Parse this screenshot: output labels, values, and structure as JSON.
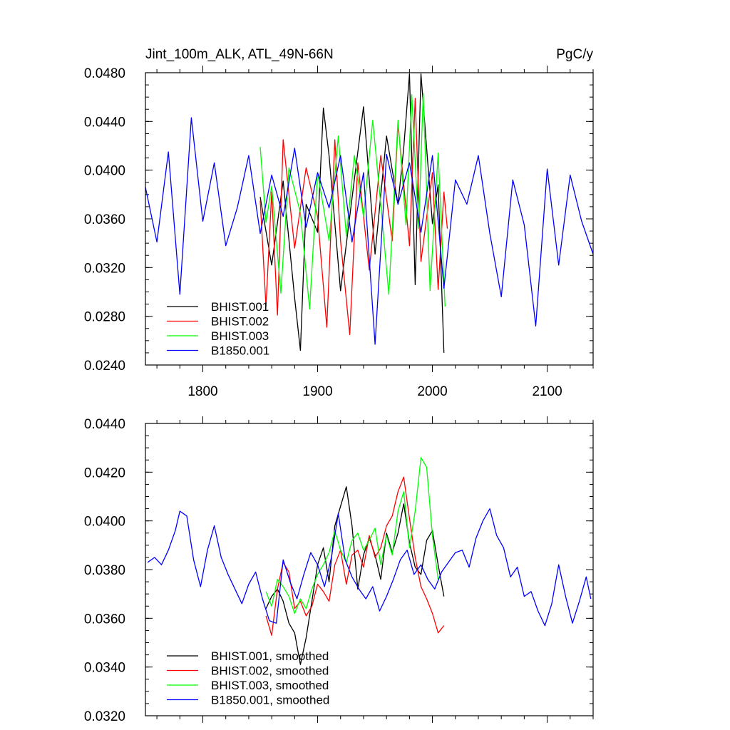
{
  "chart_data": [
    {
      "type": "line",
      "title_left": "Jint_100m_ALK, ATL_49N-66N",
      "title_right": "PgC/y",
      "xlabel": "",
      "ylabel": "",
      "xlim": [
        1750,
        2140
      ],
      "ylim": [
        0.024,
        0.048
      ],
      "xticks": [
        1800,
        1900,
        2000,
        2100
      ],
      "xtick_labels": [
        "1800",
        "1900",
        "2000",
        "2100"
      ],
      "yticks": [
        0.024,
        0.028,
        0.032,
        0.036,
        0.04,
        0.044,
        0.048
      ],
      "ytick_labels": [
        "0.0240",
        "0.0280",
        "0.0320",
        "0.0360",
        "0.0400",
        "0.0440",
        "0.0480"
      ],
      "legend_position": "bottom-left",
      "series": [
        {
          "name": "BHIST.001",
          "color": "#000000",
          "x": [
            1850,
            1860,
            1870,
            1880,
            1885,
            1890,
            1900,
            1905,
            1910,
            1920,
            1930,
            1940,
            1950,
            1960,
            1970,
            1975,
            1980,
            1985,
            1990,
            2000,
            2005,
            2010
          ],
          "values": [
            0.0378,
            0.0322,
            0.0391,
            0.0295,
            0.0252,
            0.0372,
            0.0349,
            0.0451,
            0.0412,
            0.0301,
            0.0377,
            0.0452,
            0.0331,
            0.0428,
            0.0372,
            0.0418,
            0.0479,
            0.0306,
            0.0479,
            0.0356,
            0.0388,
            0.025
          ]
        },
        {
          "name": "BHIST.002",
          "color": "#ff0000",
          "x": [
            1850,
            1855,
            1860,
            1865,
            1870,
            1880,
            1890,
            1900,
            1908,
            1915,
            1920,
            1928,
            1935,
            1945,
            1955,
            1965,
            1970,
            1980,
            1985,
            1990,
            2000,
            2005,
            2010,
            2013
          ],
          "values": [
            0.0375,
            0.0288,
            0.0382,
            0.0281,
            0.0425,
            0.0336,
            0.0402,
            0.0362,
            0.0271,
            0.0425,
            0.0342,
            0.0265,
            0.0406,
            0.0318,
            0.0412,
            0.0342,
            0.0438,
            0.0338,
            0.0459,
            0.0325,
            0.0398,
            0.0302,
            0.0382,
            0.0352
          ]
        },
        {
          "name": "BHIST.003",
          "color": "#00ff00",
          "x": [
            1850,
            1855,
            1860,
            1868,
            1875,
            1885,
            1893,
            1900,
            1910,
            1918,
            1925,
            1932,
            1940,
            1948,
            1955,
            1962,
            1970,
            1977,
            1982,
            1988,
            1992,
            1998,
            2005,
            2011
          ],
          "values": [
            0.0419,
            0.0357,
            0.0387,
            0.0299,
            0.0402,
            0.0365,
            0.0286,
            0.0398,
            0.0342,
            0.0428,
            0.0346,
            0.0412,
            0.0362,
            0.0441,
            0.0372,
            0.0298,
            0.0441,
            0.0355,
            0.0462,
            0.0352,
            0.0463,
            0.0301,
            0.0414,
            0.0288
          ]
        },
        {
          "name": "B1850.001",
          "color": "#0000ff",
          "x": [
            1750,
            1760,
            1770,
            1780,
            1790,
            1800,
            1810,
            1820,
            1830,
            1840,
            1850,
            1860,
            1870,
            1880,
            1890,
            1900,
            1910,
            1920,
            1930,
            1940,
            1950,
            1960,
            1970,
            1980,
            1990,
            2000,
            2010,
            2020,
            2030,
            2040,
            2050,
            2060,
            2070,
            2080,
            2090,
            2100,
            2110,
            2120,
            2130,
            2140
          ],
          "values": [
            0.0386,
            0.0341,
            0.0415,
            0.0298,
            0.0443,
            0.0358,
            0.0406,
            0.0338,
            0.0369,
            0.0412,
            0.0348,
            0.0396,
            0.0362,
            0.0418,
            0.0353,
            0.0398,
            0.0369,
            0.0412,
            0.0341,
            0.0398,
            0.0257,
            0.0413,
            0.0372,
            0.0406,
            0.0349,
            0.0412,
            0.0303,
            0.0392,
            0.0372,
            0.0412,
            0.0348,
            0.0296,
            0.0392,
            0.0355,
            0.0272,
            0.0401,
            0.0322,
            0.0396,
            0.0358,
            0.0331
          ]
        }
      ]
    },
    {
      "type": "line",
      "xlabel": "",
      "ylabel": "",
      "xlim": [
        1750,
        2140
      ],
      "ylim": [
        0.032,
        0.044
      ],
      "xticks": [
        1800,
        1900,
        2000,
        2100
      ],
      "yticks": [
        0.032,
        0.034,
        0.036,
        0.038,
        0.04,
        0.042,
        0.044
      ],
      "ytick_labels": [
        "0.0320",
        "0.0340",
        "0.0360",
        "0.0380",
        "0.0400",
        "0.0420",
        "0.0440"
      ],
      "legend_position": "bottom-left",
      "series": [
        {
          "name": "BHIST.001, smoothed",
          "color": "#000000",
          "x": [
            1855,
            1860,
            1865,
            1870,
            1875,
            1880,
            1885,
            1890,
            1895,
            1900,
            1905,
            1910,
            1915,
            1920,
            1925,
            1930,
            1935,
            1940,
            1945,
            1950,
            1955,
            1960,
            1965,
            1970,
            1975,
            1980,
            1985,
            1990,
            1995,
            2000,
            2005,
            2010
          ],
          "values": [
            0.0364,
            0.0369,
            0.0372,
            0.0367,
            0.0358,
            0.0354,
            0.0341,
            0.0352,
            0.0367,
            0.0382,
            0.0389,
            0.0375,
            0.0398,
            0.0406,
            0.0414,
            0.0398,
            0.0372,
            0.0386,
            0.0393,
            0.0386,
            0.0376,
            0.0395,
            0.0387,
            0.0395,
            0.0407,
            0.0391,
            0.0381,
            0.0378,
            0.0392,
            0.0396,
            0.0382,
            0.0369
          ]
        },
        {
          "name": "BHIST.002, smoothed",
          "color": "#ff0000",
          "x": [
            1855,
            1860,
            1865,
            1870,
            1875,
            1880,
            1885,
            1890,
            1895,
            1900,
            1905,
            1910,
            1915,
            1920,
            1925,
            1930,
            1935,
            1940,
            1945,
            1950,
            1955,
            1960,
            1965,
            1970,
            1975,
            1980,
            1985,
            1990,
            1995,
            2000,
            2005,
            2010
          ],
          "values": [
            0.0361,
            0.0353,
            0.0372,
            0.0383,
            0.0379,
            0.0364,
            0.0367,
            0.0361,
            0.0365,
            0.0374,
            0.0371,
            0.0367,
            0.0382,
            0.0388,
            0.0374,
            0.0386,
            0.0388,
            0.0381,
            0.0394,
            0.0385,
            0.0389,
            0.0398,
            0.0402,
            0.0412,
            0.0418,
            0.0401,
            0.0385,
            0.0373,
            0.0368,
            0.0362,
            0.0354,
            0.0357
          ]
        },
        {
          "name": "BHIST.003, smoothed",
          "color": "#00ff00",
          "x": [
            1855,
            1860,
            1865,
            1870,
            1875,
            1880,
            1885,
            1890,
            1895,
            1900,
            1905,
            1910,
            1915,
            1920,
            1925,
            1930,
            1935,
            1940,
            1945,
            1950,
            1955,
            1960,
            1965,
            1970,
            1975,
            1980,
            1985,
            1990,
            1995,
            2000,
            2005
          ],
          "values": [
            0.0371,
            0.0365,
            0.0376,
            0.0373,
            0.0369,
            0.0362,
            0.0368,
            0.0364,
            0.0372,
            0.0378,
            0.0382,
            0.0387,
            0.0396,
            0.0388,
            0.0383,
            0.0392,
            0.0395,
            0.0388,
            0.0392,
            0.0397,
            0.0382,
            0.0394,
            0.0386,
            0.0404,
            0.0412,
            0.0389,
            0.0404,
            0.0426,
            0.0422,
            0.0394,
            0.0376
          ]
        },
        {
          "name": "B1850.001, smoothed",
          "color": "#0000ff",
          "x": [
            1752,
            1758,
            1764,
            1770,
            1776,
            1780,
            1786,
            1792,
            1798,
            1804,
            1810,
            1816,
            1822,
            1828,
            1834,
            1840,
            1846,
            1852,
            1858,
            1864,
            1870,
            1876,
            1882,
            1888,
            1894,
            1900,
            1906,
            1912,
            1918,
            1924,
            1930,
            1936,
            1942,
            1948,
            1954,
            1960,
            1966,
            1972,
            1978,
            1984,
            1990,
            1996,
            2002,
            2008,
            2014,
            2020,
            2026,
            2032,
            2038,
            2044,
            2050,
            2056,
            2062,
            2068,
            2074,
            2080,
            2086,
            2092,
            2098,
            2104,
            2110,
            2116,
            2122,
            2128,
            2134,
            2138
          ],
          "values": [
            0.0383,
            0.0385,
            0.0382,
            0.0388,
            0.0396,
            0.0404,
            0.0402,
            0.0384,
            0.0373,
            0.0388,
            0.0398,
            0.0385,
            0.0378,
            0.0372,
            0.0366,
            0.0374,
            0.0379,
            0.0368,
            0.0359,
            0.0358,
            0.0384,
            0.0375,
            0.0368,
            0.0378,
            0.0387,
            0.0382,
            0.0373,
            0.0385,
            0.0403,
            0.0384,
            0.0377,
            0.0372,
            0.0368,
            0.0373,
            0.0363,
            0.0369,
            0.0376,
            0.0384,
            0.0388,
            0.0378,
            0.0382,
            0.0376,
            0.0372,
            0.0379,
            0.0383,
            0.0387,
            0.0388,
            0.0381,
            0.0393,
            0.04,
            0.0405,
            0.0394,
            0.0389,
            0.0377,
            0.0381,
            0.0369,
            0.0371,
            0.0363,
            0.0357,
            0.0366,
            0.0382,
            0.0369,
            0.0358,
            0.0367,
            0.0377,
            0.0368
          ]
        }
      ]
    }
  ]
}
